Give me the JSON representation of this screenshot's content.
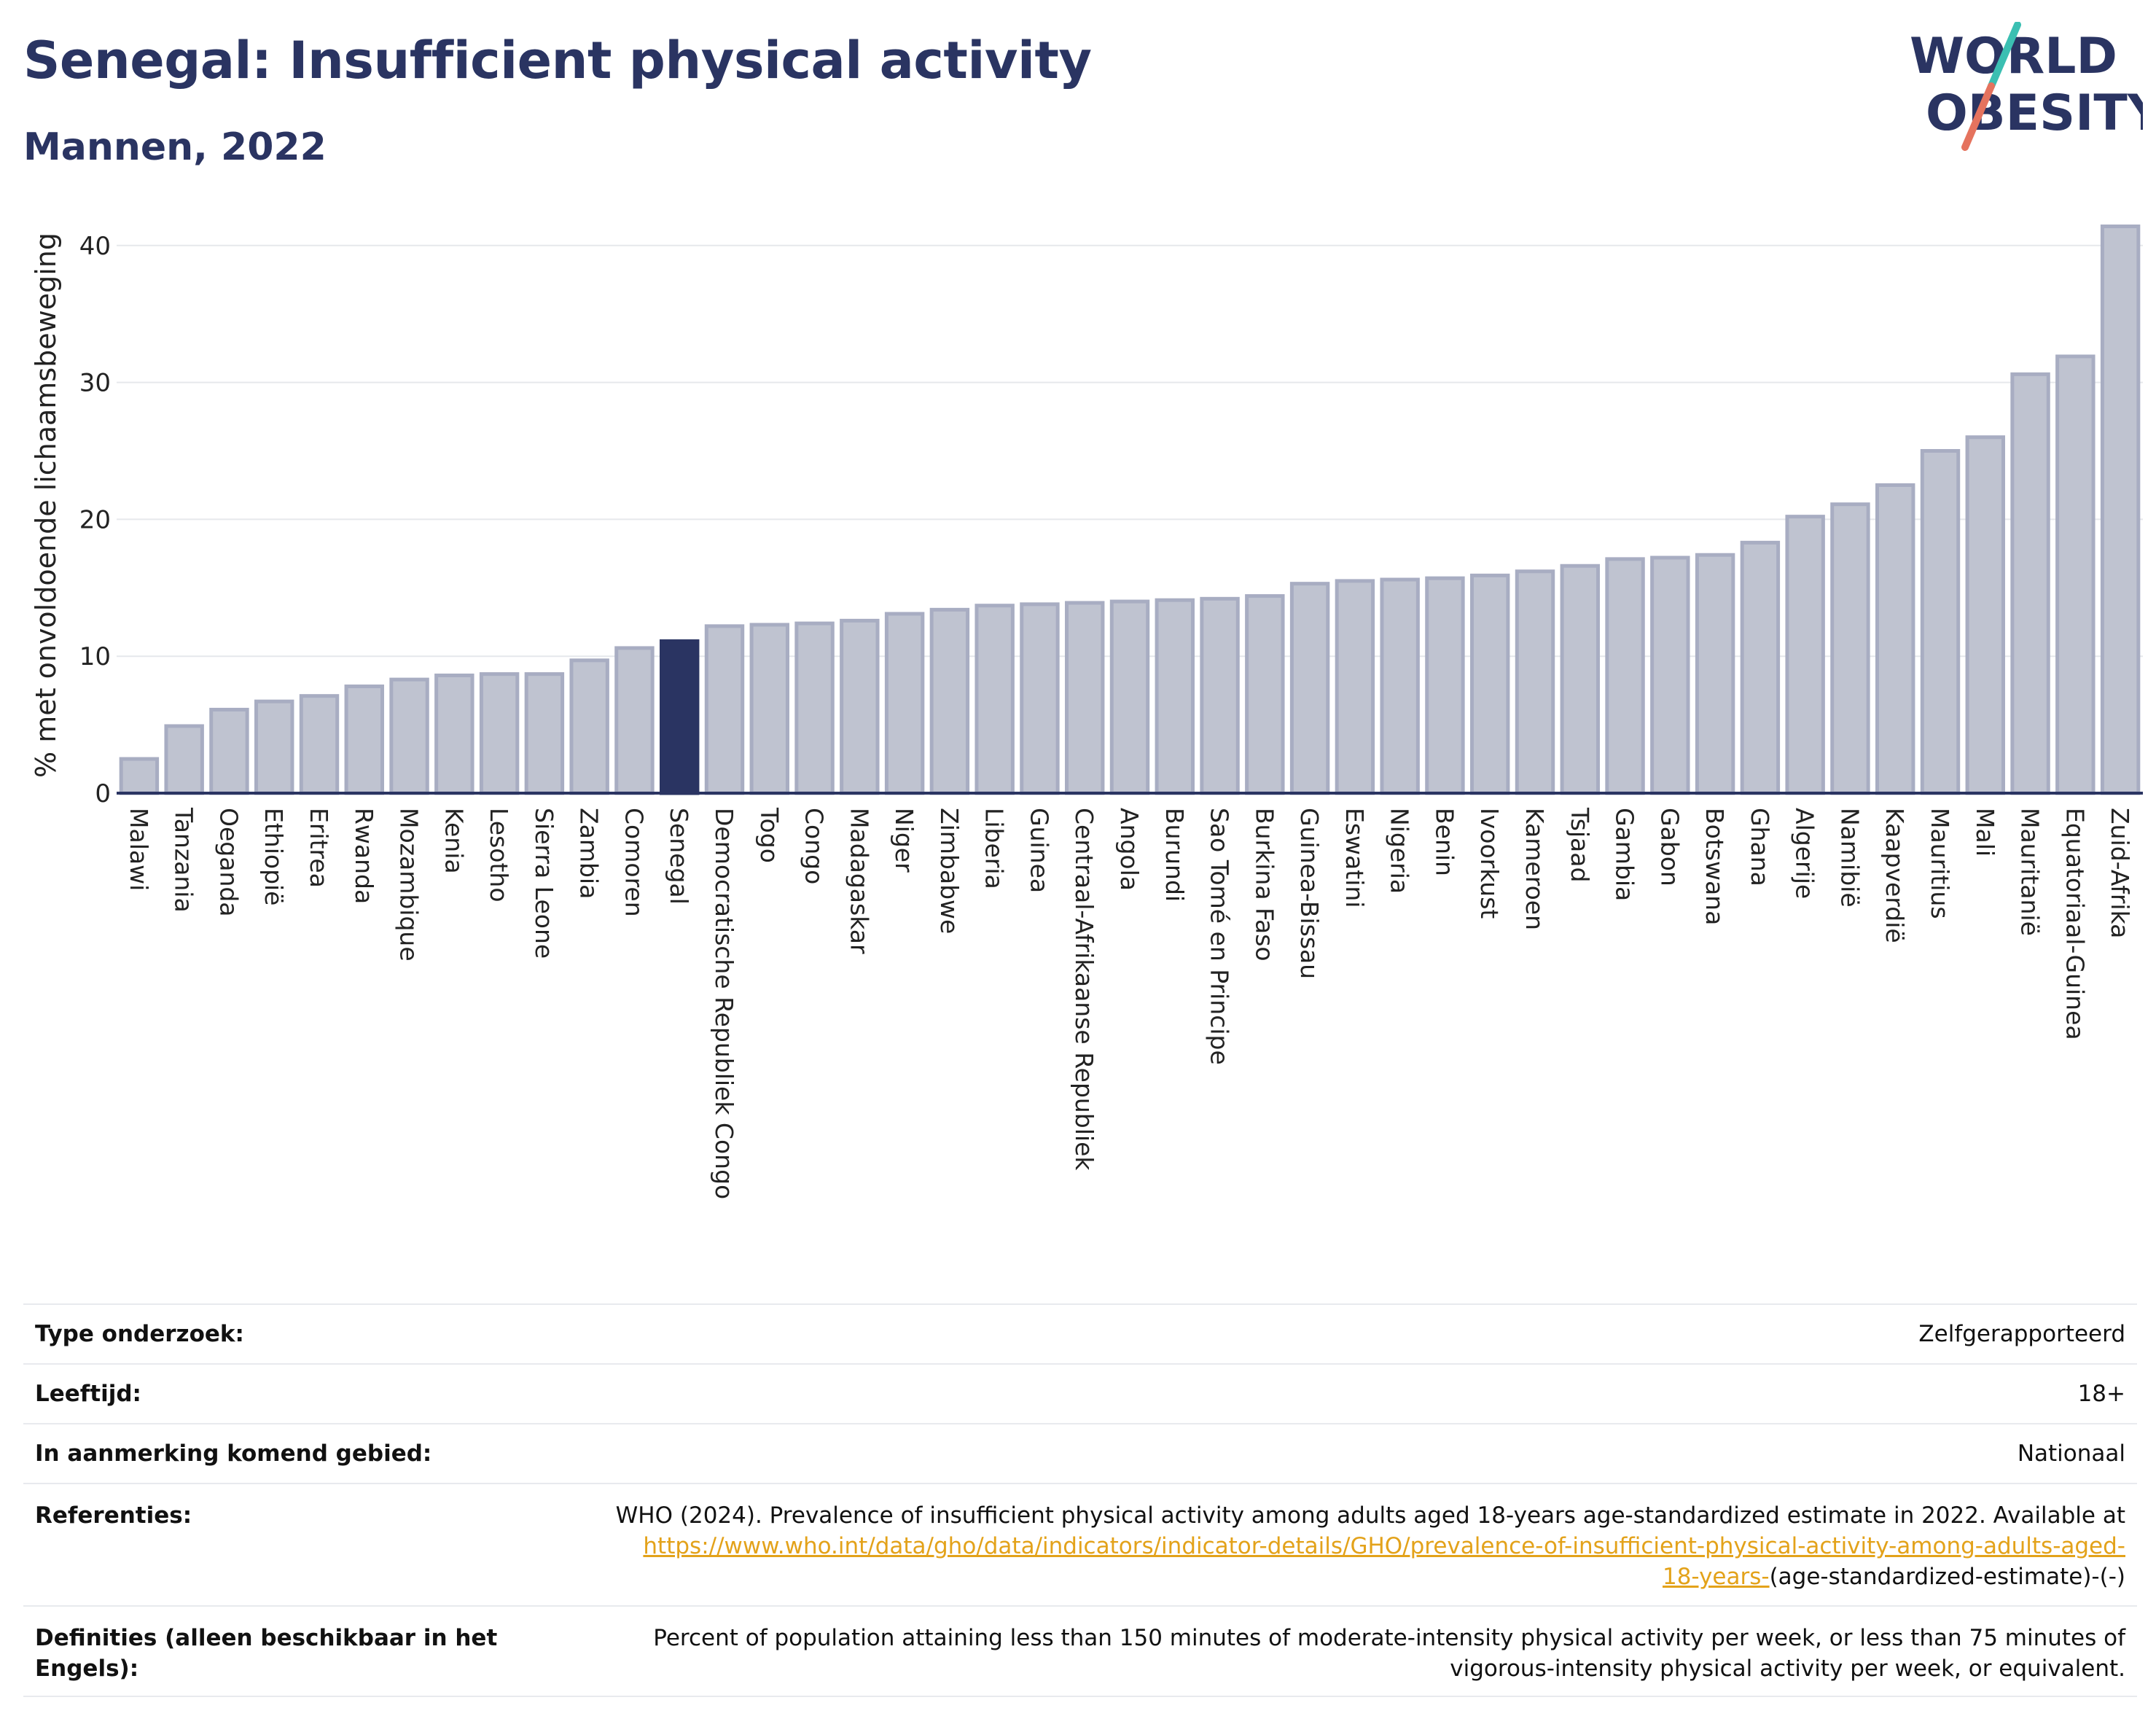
{
  "header": {
    "title": "Senegal: Insufficient physical activity",
    "subtitle": "Mannen, 2022"
  },
  "logo": {
    "line1": "WORLD",
    "line2": "OBESITY",
    "accent_colors": [
      "#3bbfb2",
      "#e5735e"
    ]
  },
  "colors": {
    "bar": "#bfc3d0",
    "bar_stroke": "#a8adc2",
    "highlight": "#2a3462",
    "axis": "#2a3462",
    "grid": "#e6e8ec"
  },
  "chart_data": {
    "type": "bar",
    "ylabel": "% met onvoldoende lichaamsbeweging",
    "ylim": [
      0,
      43
    ],
    "yticks": [
      0,
      10,
      20,
      30,
      40
    ],
    "grid": true,
    "highlight": "Senegal",
    "categories": [
      "Malawi",
      "Tanzania",
      "Oeganda",
      "Ethiopië",
      "Eritrea",
      "Rwanda",
      "Mozambique",
      "Kenia",
      "Lesotho",
      "Sierra Leone",
      "Zambia",
      "Comoren",
      "Senegal",
      "Democratische Republiek Congo",
      "Togo",
      "Congo",
      "Madagaskar",
      "Niger",
      "Zimbabwe",
      "Liberia",
      "Guinea",
      "Centraal-Afrikaanse Republiek",
      "Angola",
      "Burundi",
      "Sao Tomé en Principe",
      "Burkina Faso",
      "Guinea-Bissau",
      "Eswatini",
      "Nigeria",
      "Benin",
      "Ivoorkust",
      "Kameroen",
      "Tsjaad",
      "Gambia",
      "Gabon",
      "Botswana",
      "Ghana",
      "Algerije",
      "Namibië",
      "Kaapverdië",
      "Mauritius",
      "Mali",
      "Mauritanië",
      "Equatoriaal-Guinea",
      "Zuid-Afrika"
    ],
    "values": [
      2.5,
      4.9,
      6.1,
      6.7,
      7.1,
      7.8,
      8.3,
      8.6,
      8.7,
      8.7,
      9.7,
      10.6,
      11.1,
      12.2,
      12.3,
      12.4,
      12.6,
      13.1,
      13.4,
      13.7,
      13.8,
      13.9,
      14.0,
      14.1,
      14.2,
      14.4,
      15.3,
      15.5,
      15.6,
      15.7,
      15.9,
      16.2,
      16.6,
      17.1,
      17.2,
      17.4,
      18.3,
      20.2,
      21.1,
      22.5,
      25.0,
      26.0,
      30.6,
      31.9,
      41.4
    ]
  },
  "details": [
    {
      "label": "Type onderzoek:",
      "value": "Zelfgerapporteerd"
    },
    {
      "label": "Leeftijd:",
      "value": "18+"
    },
    {
      "label": "In aanmerking komend gebied:",
      "value": "Nationaal"
    }
  ],
  "references": {
    "label": "Referenties:",
    "text": "WHO (2024). Prevalence of insufficient physical activity among adults aged 18-years age-standardized estimate in 2022. Available at",
    "link_line1": "https://www.who.int/data/gho/data/indicators/indicator-details/GHO/prevalence-of-insufficient-physical-activity-among-adults-aged-",
    "link_line2": "18-years-",
    "suffix": "(age-standardized-estimate)-(-)"
  },
  "definitions": {
    "label": "Definities (alleen beschikbaar in het Engels):",
    "value": "Percent of population attaining less than 150 minutes of moderate-intensity physical activity per week, or less than 75 minutes of vigorous-intensity physical activity per week, or equivalent."
  }
}
